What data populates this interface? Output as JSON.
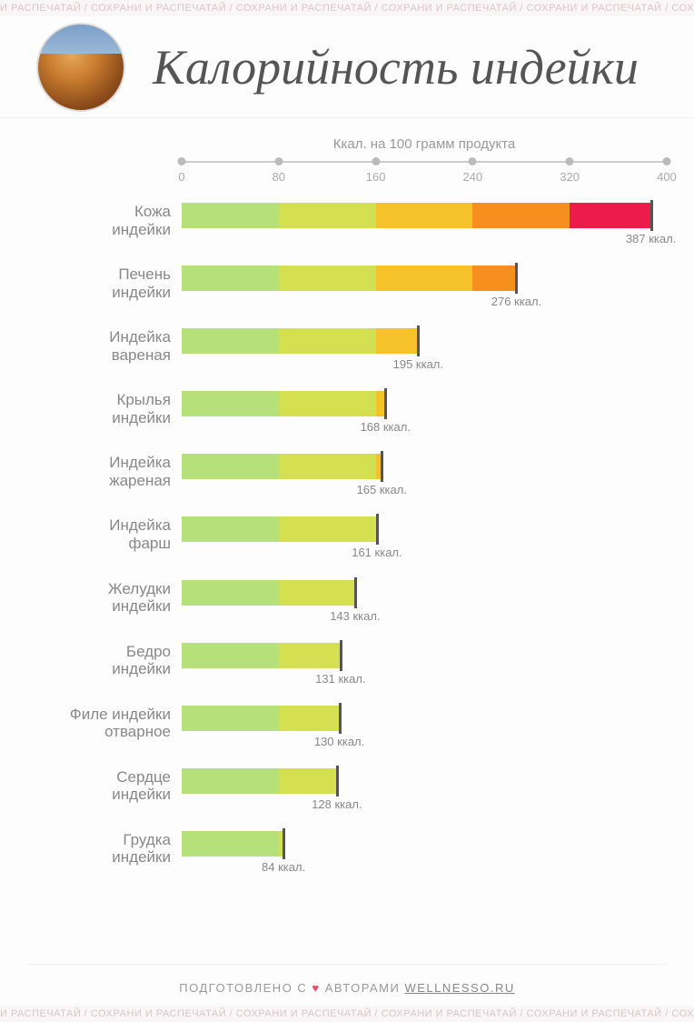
{
  "watermark_text": "И РАСПЕЧАТАЙ / СОХРАНИ И РАСПЕЧАТАЙ / СОХРАНИ И РАСПЕЧАТАЙ / СОХРАНИ И РАСПЕЧАТАЙ / СОХРАНИ И РАСПЕЧАТАЙ / СОХРАНИ И РАС",
  "title": "Калорийность индейки",
  "axis": {
    "label": "Ккал. на 100 грамм продукта",
    "min": 0,
    "max": 400,
    "ticks": [
      0,
      80,
      160,
      240,
      320,
      400
    ],
    "line_color": "#cccccc",
    "tick_color": "#bbbbbb",
    "label_color": "#aaaaaa",
    "label_fontsize": 13
  },
  "segments": {
    "breakpoints": [
      0,
      80,
      160,
      240,
      320,
      400
    ],
    "colors": [
      "#b5e07a",
      "#d4e04f",
      "#f6c22a",
      "#f78f1e",
      "#ed1b4a"
    ]
  },
  "bar": {
    "height": 28,
    "endcap_color": "#555555",
    "value_suffix": " ккал.",
    "label_color": "#888888",
    "label_fontsize": 17,
    "value_fontsize": 13
  },
  "items": [
    {
      "label_line1": "Кожа",
      "label_line2": "индейки",
      "value": 387
    },
    {
      "label_line1": "Печень",
      "label_line2": "индейки",
      "value": 276
    },
    {
      "label_line1": "Индейка",
      "label_line2": "вареная",
      "value": 195
    },
    {
      "label_line1": "Крылья",
      "label_line2": "индейки",
      "value": 168
    },
    {
      "label_line1": "Индейка",
      "label_line2": "жареная",
      "value": 165
    },
    {
      "label_line1": "Индейка",
      "label_line2": "фарш",
      "value": 161
    },
    {
      "label_line1": "Желудки",
      "label_line2": "индейки",
      "value": 143
    },
    {
      "label_line1": "Бедро",
      "label_line2": "индейки",
      "value": 131
    },
    {
      "label_line1": "Филе индейки",
      "label_line2": "отварное",
      "value": 130
    },
    {
      "label_line1": "Сердце",
      "label_line2": "индейки",
      "value": 128
    },
    {
      "label_line1": "Грудка",
      "label_line2": "индейки",
      "value": 84
    }
  ],
  "footer": {
    "prefix": "ПОДГОТОВЛЕНО С ",
    "heart": "♥",
    "mid": " АВТОРАМИ ",
    "site": "WELLNESSO.RU"
  },
  "colors": {
    "background": "#fdfdfd",
    "watermark_bg": "#faf5f6",
    "watermark_text": "#d9c5c8",
    "title": "#555555",
    "footer_text": "#999999",
    "heart": "#e74c6b"
  }
}
